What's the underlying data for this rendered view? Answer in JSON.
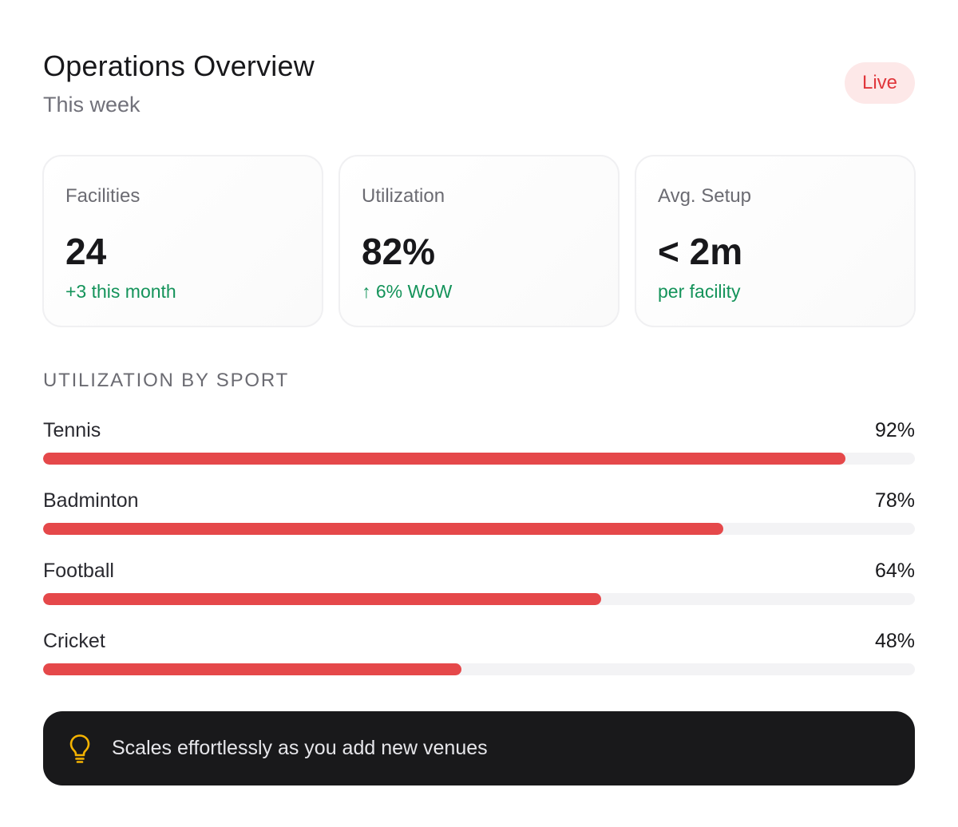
{
  "header": {
    "title": "Operations Overview",
    "subtitle": "This week",
    "badge": "Live"
  },
  "stats": [
    {
      "label": "Facilities",
      "value": "24",
      "note": "+3 this month"
    },
    {
      "label": "Utilization",
      "value": "82%",
      "note": "↑ 6% WoW"
    },
    {
      "label": "Avg. Setup",
      "value": "< 2m",
      "note": "per facility"
    }
  ],
  "section": {
    "title": "UTILIZATION BY SPORT"
  },
  "chart_data": {
    "type": "bar",
    "orientation": "horizontal",
    "categories": [
      "Tennis",
      "Badminton",
      "Football",
      "Cricket"
    ],
    "values": [
      92,
      78,
      64,
      48
    ],
    "value_labels": [
      "92%",
      "78%",
      "64%",
      "48%"
    ],
    "xlim": [
      0,
      100
    ],
    "bar_color": "#e5484a"
  },
  "banner": {
    "icon": "lightbulb-icon",
    "text": "Scales effortlessly as you add new venues"
  },
  "colors": {
    "accent": "#e5484a",
    "positive": "#14935a",
    "badge_bg": "#fde8e8",
    "banner_bg": "#19191b"
  }
}
